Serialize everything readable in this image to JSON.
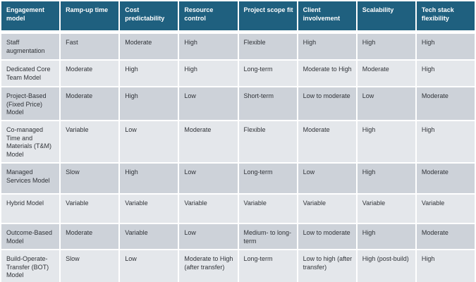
{
  "table": {
    "columns": [
      "Engagement model",
      "Ramp-up time",
      "Cost predictability",
      "Resource control",
      "Project scope fit",
      "Client involvement",
      "Scalability",
      "Tech stack flexibility"
    ],
    "rows": [
      {
        "model": "Staff augmentation",
        "values": [
          "Fast",
          "Moderate",
          "High",
          "Flexible",
          "High",
          "High",
          "High"
        ]
      },
      {
        "model": "Dedicated Core Team Model",
        "values": [
          "Moderate",
          "High",
          "High",
          "Long-term",
          "Moderate to High",
          "Moderate",
          "High"
        ]
      },
      {
        "model": "Project-Based (Fixed Price) Model",
        "values": [
          "Moderate",
          "High",
          "Low",
          "Short-term",
          "Low to moderate",
          "Low",
          "Moderate"
        ]
      },
      {
        "model": "Co-managed Time and Materials (T&M) Model",
        "values": [
          "Variable",
          "Low",
          "Moderate",
          "Flexible",
          "Moderate",
          "High",
          "High"
        ]
      },
      {
        "model": "Managed Services Model",
        "values": [
          "Slow",
          "High",
          "Low",
          "Long-term",
          "Low",
          "High",
          "Moderate"
        ]
      },
      {
        "model": "Hybrid Model",
        "values": [
          "Variable",
          "Variable",
          "Variable",
          "Variable",
          "Variable",
          "Variable",
          "Variable"
        ]
      },
      {
        "model": "Outcome-Based Model",
        "values": [
          "Moderate",
          "Variable",
          "Low",
          "Medium- to long-term",
          "Low to moderate",
          "High",
          "Moderate"
        ]
      },
      {
        "model": "Build-Operate-Transfer (BOT) Model",
        "values": [
          "Slow",
          "Low",
          "Moderate to High (after transfer)",
          "Long-term",
          "Low to high (after transfer)",
          "High (post-build)",
          "High"
        ]
      }
    ],
    "colors": {
      "header_bg": "#1f607f",
      "header_text": "#ffffff",
      "row_stripe_dark": "#cdd2d9",
      "row_stripe_light": "#e4e7eb",
      "body_text": "#303338",
      "separator": "#ffffff"
    }
  }
}
